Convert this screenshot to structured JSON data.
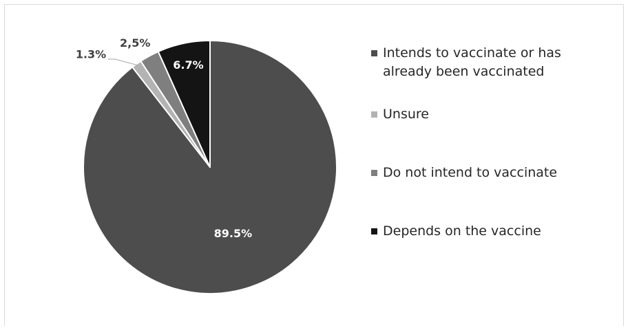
{
  "chart_data": {
    "type": "pie",
    "slices": [
      {
        "label": "Intends to vaccinate or has already been vaccinated",
        "value": 89.5,
        "data_label": "89.5%",
        "color": "#4d4d4d",
        "label_color": "#ffffff"
      },
      {
        "label": "Unsure",
        "value": 1.3,
        "data_label": "1.3%",
        "color": "#b3b3b3",
        "label_color": "#404040"
      },
      {
        "label": "Do not intend to vaccinate",
        "value": 2.5,
        "data_label": "2,5%",
        "color": "#7f7f7f",
        "label_color": "#404040"
      },
      {
        "label": "Depends on the vaccine",
        "value": 6.7,
        "data_label": "6.7%",
        "color": "#141414",
        "label_color": "#ffffff"
      }
    ],
    "start": "12 o'clock",
    "direction": "clockwise",
    "legend_position": "right",
    "slice_border_color": "#ffffff"
  },
  "legend": {
    "items": [
      {
        "label": "Intends to vaccinate or has already been vaccinated",
        "color": "#4d4d4d"
      },
      {
        "label": "Unsure",
        "color": "#b3b3b3"
      },
      {
        "label": "Do not intend to vaccinate",
        "color": "#7f7f7f"
      },
      {
        "label": "Depends on the vaccine",
        "color": "#141414"
      }
    ]
  }
}
